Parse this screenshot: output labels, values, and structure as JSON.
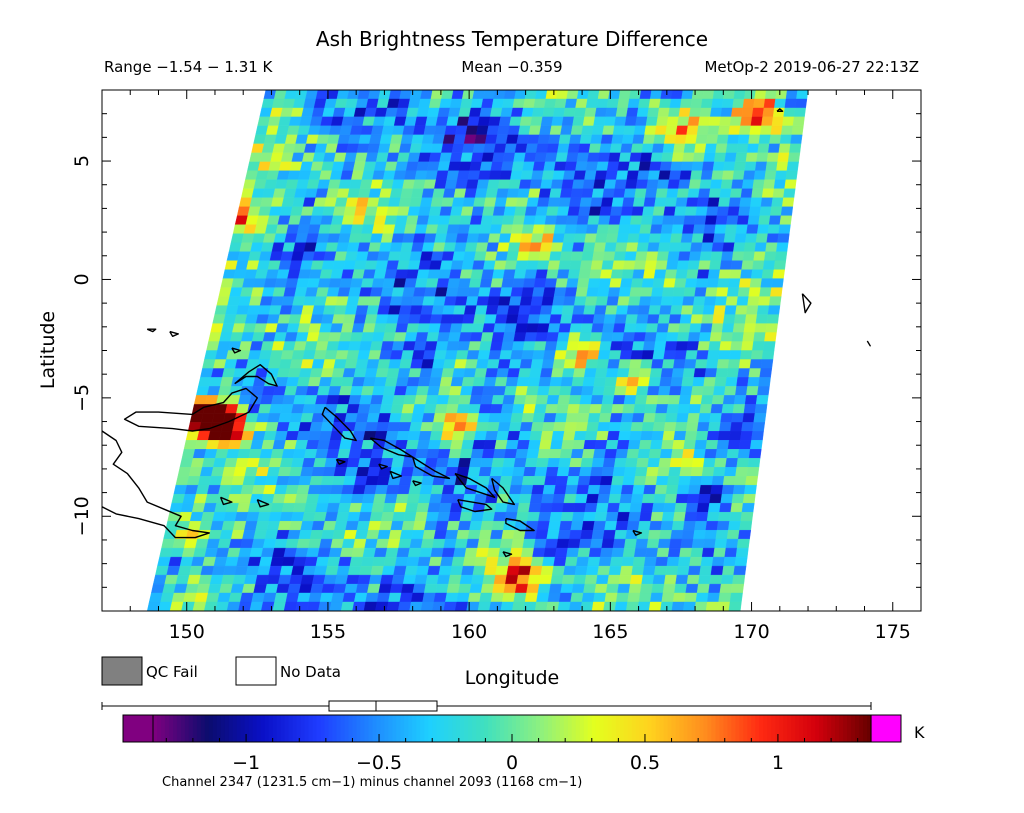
{
  "chart_data": {
    "type": "heatmap",
    "title": "Ash Brightness Temperature Difference",
    "subtitle": {
      "range": "Range −1.54 − 1.31 K",
      "mean": "Mean −0.359",
      "satellite_time": "MetOp-2 2019-06-27 22:13Z"
    },
    "xlabel": "Longitude",
    "ylabel": "Latitude",
    "xlim": [
      147,
      176
    ],
    "ylim": [
      -14,
      8
    ],
    "x_ticks": [
      150,
      155,
      160,
      165,
      170,
      175
    ],
    "y_ticks": [
      5,
      0,
      -5,
      -10
    ],
    "swath_corners": {
      "top_left": [
        152.8,
        8
      ],
      "top_right": [
        172.0,
        8
      ],
      "bottom_left": [
        148.6,
        -14
      ],
      "bottom_right": [
        169.6,
        -14
      ]
    },
    "value_range": [
      -1.54,
      1.31
    ],
    "mean": -0.359,
    "colorbar": {
      "min": -1.35,
      "max": 1.35,
      "ticks": [
        -1,
        -0.5,
        0,
        0.5,
        1
      ],
      "tick_labels": [
        "−1",
        "−0.5",
        "0",
        "0.5",
        "1"
      ],
      "unit": "K",
      "stops": [
        "#800080",
        "#0b0c6e",
        "#0a10c8",
        "#1f3cff",
        "#1f8aff",
        "#1ed0ff",
        "#3fe0c0",
        "#8cf080",
        "#e4ff1e",
        "#ffd21e",
        "#ff8c1e",
        "#ff2a12",
        "#d4000c",
        "#660000"
      ],
      "under_color": "#800080",
      "over_color": "#ff00ff"
    },
    "hotspots": [
      {
        "lon": 151.0,
        "lat": -6.0,
        "value": 1.25
      },
      {
        "lon": 150.8,
        "lat": -5.7,
        "value": 1.1
      },
      {
        "lon": 151.5,
        "lat": -6.3,
        "value": 0.75
      },
      {
        "lon": 150.2,
        "lat": -10.8,
        "value": 0.55
      },
      {
        "lon": 170.3,
        "lat": 7.0,
        "value": 1.2
      },
      {
        "lon": 161.8,
        "lat": -12.7,
        "value": 1.05
      },
      {
        "lon": 167.5,
        "lat": 6.2,
        "value": 0.6
      },
      {
        "lon": 159.5,
        "lat": -6.3,
        "value": 0.65
      },
      {
        "lon": 162.5,
        "lat": 1.5,
        "value": 0.55
      },
      {
        "lon": 152.0,
        "lat": 2.5,
        "value": 0.45
      },
      {
        "lon": 163.8,
        "lat": -3.2,
        "value": 0.7
      },
      {
        "lon": 166.0,
        "lat": -4.3,
        "value": 0.6
      },
      {
        "lon": 156.0,
        "lat": 3.0,
        "value": 0.4
      }
    ],
    "coldspots": [
      {
        "lon": 158.5,
        "lat": -3.5,
        "value": -0.95
      },
      {
        "lon": 169.5,
        "lat": -6.5,
        "value": -1.05
      },
      {
        "lon": 160.0,
        "lat": 6.0,
        "value": -0.85
      },
      {
        "lon": 167.0,
        "lat": 4.5,
        "value": -0.9
      },
      {
        "lon": 168.5,
        "lat": -9.0,
        "value": -1.0
      },
      {
        "lon": 156.5,
        "lat": -8.5,
        "value": -0.9
      },
      {
        "lon": 162.0,
        "lat": -1.5,
        "value": -0.75
      }
    ],
    "coastlines": [
      [
        [
          150.8,
          -6.3
        ],
        [
          151.5,
          -6.0
        ],
        [
          152.2,
          -5.6
        ],
        [
          152.5,
          -5.0
        ],
        [
          152.1,
          -4.6
        ],
        [
          151.6,
          -4.8
        ],
        [
          151.3,
          -5.2
        ],
        [
          150.6,
          -5.4
        ],
        [
          150.2,
          -5.7
        ],
        [
          149.0,
          -5.6
        ],
        [
          148.2,
          -5.6
        ],
        [
          147.8,
          -5.9
        ],
        [
          148.3,
          -6.2
        ],
        [
          149.5,
          -6.3
        ],
        [
          150.2,
          -6.4
        ],
        [
          150.8,
          -6.3
        ]
      ],
      [
        [
          151.7,
          -4.4
        ],
        [
          152.2,
          -3.9
        ],
        [
          152.6,
          -3.6
        ],
        [
          153.0,
          -4.0
        ],
        [
          153.2,
          -4.5
        ],
        [
          152.9,
          -4.4
        ],
        [
          152.5,
          -4.1
        ],
        [
          152.1,
          -4.1
        ],
        [
          151.7,
          -4.4
        ]
      ],
      [
        [
          147.0,
          -6.4
        ],
        [
          147.5,
          -6.8
        ],
        [
          147.7,
          -7.3
        ],
        [
          147.4,
          -7.8
        ],
        [
          147.9,
          -8.2
        ],
        [
          148.3,
          -8.8
        ],
        [
          148.6,
          -9.4
        ],
        [
          149.2,
          -9.7
        ],
        [
          149.8,
          -10.0
        ],
        [
          149.6,
          -10.4
        ],
        [
          150.2,
          -10.6
        ],
        [
          150.8,
          -10.7
        ],
        [
          150.3,
          -10.9
        ],
        [
          149.6,
          -10.9
        ],
        [
          149.2,
          -10.4
        ],
        [
          148.3,
          -10.1
        ],
        [
          147.5,
          -9.9
        ],
        [
          147.0,
          -9.6
        ]
      ],
      [
        [
          154.9,
          -5.4
        ],
        [
          155.3,
          -5.8
        ],
        [
          155.8,
          -6.4
        ],
        [
          156.0,
          -6.8
        ],
        [
          155.6,
          -6.7
        ],
        [
          155.2,
          -6.2
        ],
        [
          154.8,
          -5.7
        ],
        [
          154.9,
          -5.4
        ]
      ],
      [
        [
          156.5,
          -6.7
        ],
        [
          157.0,
          -6.8
        ],
        [
          157.6,
          -7.2
        ],
        [
          158.0,
          -7.5
        ],
        [
          157.5,
          -7.4
        ],
        [
          156.9,
          -7.1
        ],
        [
          156.5,
          -6.7
        ]
      ],
      [
        [
          158.0,
          -7.5
        ],
        [
          158.8,
          -8.1
        ],
        [
          159.3,
          -8.4
        ],
        [
          158.7,
          -8.3
        ],
        [
          158.1,
          -7.9
        ],
        [
          158.0,
          -7.5
        ]
      ],
      [
        [
          159.5,
          -8.2
        ],
        [
          160.0,
          -8.4
        ],
        [
          160.6,
          -8.8
        ],
        [
          160.9,
          -9.2
        ],
        [
          160.4,
          -9.0
        ],
        [
          159.9,
          -8.8
        ],
        [
          159.5,
          -8.2
        ]
      ],
      [
        [
          160.8,
          -8.4
        ],
        [
          161.2,
          -8.8
        ],
        [
          161.6,
          -9.5
        ],
        [
          161.2,
          -9.4
        ],
        [
          160.9,
          -8.9
        ],
        [
          160.8,
          -8.4
        ]
      ],
      [
        [
          159.6,
          -9.3
        ],
        [
          160.1,
          -9.4
        ],
        [
          160.6,
          -9.5
        ],
        [
          160.8,
          -9.7
        ],
        [
          160.2,
          -9.8
        ],
        [
          159.7,
          -9.6
        ],
        [
          159.6,
          -9.3
        ]
      ],
      [
        [
          161.3,
          -10.1
        ],
        [
          161.8,
          -10.2
        ],
        [
          162.3,
          -10.6
        ],
        [
          161.8,
          -10.6
        ],
        [
          161.3,
          -10.3
        ],
        [
          161.3,
          -10.1
        ]
      ],
      [
        [
          157.2,
          -8.1
        ],
        [
          157.6,
          -8.3
        ],
        [
          157.3,
          -8.4
        ],
        [
          157.2,
          -8.1
        ]
      ],
      [
        [
          156.8,
          -7.8
        ],
        [
          157.1,
          -7.9
        ],
        [
          156.9,
          -8.0
        ],
        [
          156.8,
          -7.8
        ]
      ],
      [
        [
          158.0,
          -8.5
        ],
        [
          158.3,
          -8.6
        ],
        [
          158.1,
          -8.7
        ],
        [
          158.0,
          -8.5
        ]
      ],
      [
        [
          155.3,
          -7.6
        ],
        [
          155.6,
          -7.7
        ],
        [
          155.4,
          -7.8
        ],
        [
          155.3,
          -7.6
        ]
      ],
      [
        [
          151.6,
          -2.9
        ],
        [
          151.9,
          -3.0
        ],
        [
          151.7,
          -3.1
        ],
        [
          151.6,
          -2.9
        ]
      ],
      [
        [
          149.4,
          -2.2
        ],
        [
          149.7,
          -2.3
        ],
        [
          149.5,
          -2.4
        ],
        [
          149.4,
          -2.2
        ]
      ],
      [
        [
          151.2,
          -9.2
        ],
        [
          151.6,
          -9.4
        ],
        [
          151.3,
          -9.5
        ],
        [
          151.2,
          -9.2
        ]
      ],
      [
        [
          152.5,
          -9.3
        ],
        [
          152.9,
          -9.5
        ],
        [
          152.6,
          -9.6
        ],
        [
          152.5,
          -9.3
        ]
      ],
      [
        [
          161.2,
          -11.5
        ],
        [
          161.5,
          -11.6
        ],
        [
          161.3,
          -11.7
        ],
        [
          161.2,
          -11.5
        ]
      ],
      [
        [
          165.8,
          -10.6
        ],
        [
          166.1,
          -10.7
        ],
        [
          165.9,
          -10.8
        ],
        [
          165.8,
          -10.6
        ]
      ],
      [
        [
          171.8,
          -0.6
        ],
        [
          172.1,
          -1.0
        ],
        [
          171.9,
          -1.4
        ],
        [
          171.8,
          -0.6
        ]
      ],
      [
        [
          174.1,
          -2.6
        ],
        [
          174.2,
          -2.8
        ],
        [
          174.1,
          -2.6
        ]
      ],
      [
        [
          170.9,
          7.1
        ],
        [
          171.1,
          7.1
        ],
        [
          171.0,
          7.2
        ],
        [
          170.9,
          7.1
        ]
      ],
      [
        [
          148.6,
          -2.1
        ],
        [
          148.9,
          -2.1
        ],
        [
          148.8,
          -2.2
        ],
        [
          148.6,
          -2.1
        ]
      ]
    ]
  },
  "legend": {
    "qc_fail_label": "QC Fail",
    "no_data_label": "No Data",
    "qc_fail_color": "#808080",
    "no_data_color": "#ffffff"
  },
  "footer": {
    "channel_note": "Channel 2347 (1231.5 cm−1) minus channel 2093 (1168 cm−1)"
  }
}
